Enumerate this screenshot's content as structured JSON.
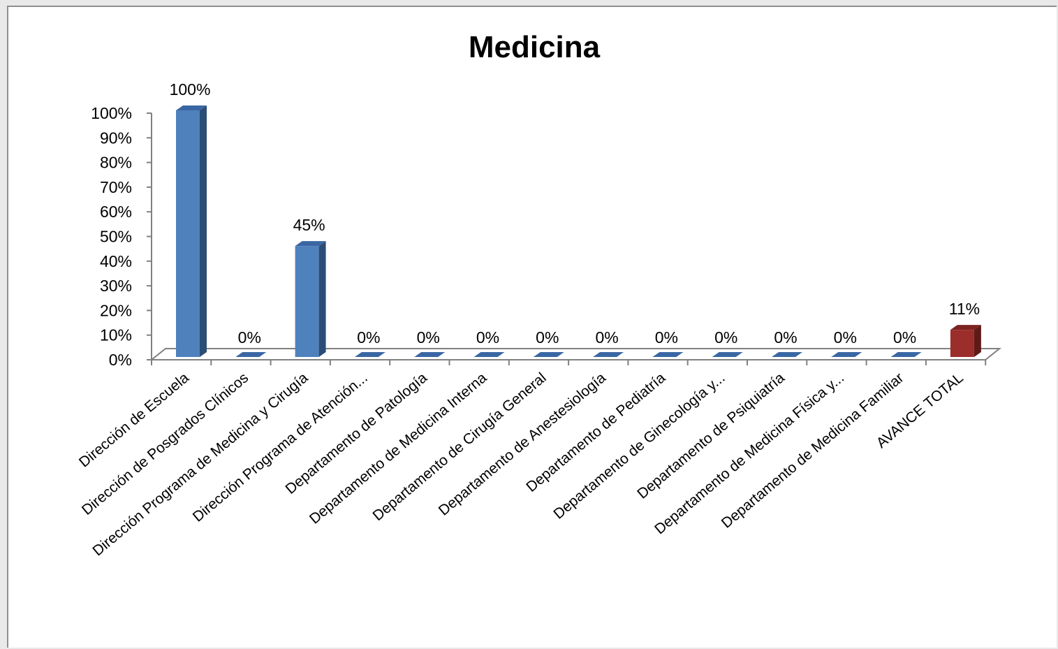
{
  "chart_data": {
    "type": "bar",
    "title": "Medicina",
    "categories": [
      "Dirección de Escuela",
      "Dirección de Posgrados Clínicos",
      "Dirección Programa de Medicina y Cirugía",
      "Dirección Programa de Atención...",
      "Departamento de Patología",
      "Departamento de Medicina Interna",
      "Departamento de Cirugía General",
      "Departamento de Anestesiología",
      "Departamento de Pediatría",
      "Departamento de Ginecología y...",
      "Departamento de Psiquiatría",
      "Departamento de Medicina Física y...",
      "Departamento de Medicina Familiar",
      "AVANCE TOTAL"
    ],
    "values": [
      100,
      0,
      45,
      0,
      0,
      0,
      0,
      0,
      0,
      0,
      0,
      0,
      0,
      11
    ],
    "data_labels": [
      "100%",
      "0%",
      "45%",
      "0%",
      "0%",
      "0%",
      "0%",
      "0%",
      "0%",
      "0%",
      "0%",
      "0%",
      "0%",
      "11%"
    ],
    "ylim": [
      0,
      100
    ],
    "y_ticks": [
      "0%",
      "10%",
      "20%",
      "30%",
      "40%",
      "50%",
      "60%",
      "70%",
      "80%",
      "90%",
      "100%"
    ],
    "xlabel": "",
    "ylabel": "",
    "grid": false,
    "legend": "none",
    "style": "3d-column",
    "colors": {
      "bar": "#4f81bd",
      "bar_side": "#2c4d75",
      "bar_top": "#3a67a3",
      "total": "#9b2d2a",
      "total_side": "#5e1a18",
      "total_top": "#7d2422",
      "axis": "#808080"
    }
  }
}
